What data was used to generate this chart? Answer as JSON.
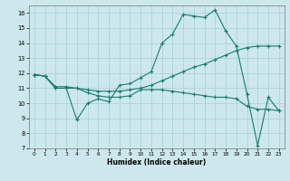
{
  "xlabel": "Humidex (Indice chaleur)",
  "xlim": [
    -0.5,
    23.5
  ],
  "ylim": [
    7,
    16.5
  ],
  "xticks": [
    0,
    1,
    2,
    3,
    4,
    5,
    6,
    7,
    8,
    9,
    10,
    11,
    12,
    13,
    14,
    15,
    16,
    17,
    18,
    19,
    20,
    21,
    22,
    23
  ],
  "yticks": [
    7,
    8,
    9,
    10,
    11,
    12,
    13,
    14,
    15,
    16
  ],
  "background_color": "#cce8ed",
  "grid_color": "#aacdd4",
  "line_color": "#1a7a6e",
  "line1_y": [
    11.9,
    11.8,
    11.0,
    11.0,
    8.9,
    10.0,
    10.3,
    10.1,
    11.2,
    11.3,
    11.7,
    12.1,
    14.0,
    14.6,
    15.9,
    15.8,
    15.7,
    16.2,
    14.8,
    13.8,
    10.6,
    7.2,
    10.4,
    9.5
  ],
  "line2_y": [
    11.9,
    11.8,
    11.1,
    11.1,
    11.0,
    10.9,
    10.8,
    10.8,
    10.8,
    10.9,
    11.0,
    11.2,
    11.5,
    11.8,
    12.1,
    12.4,
    12.6,
    12.9,
    13.2,
    13.5,
    13.7,
    13.8,
    13.8,
    13.8
  ],
  "line3_y": [
    11.9,
    11.8,
    11.0,
    11.0,
    11.0,
    10.7,
    10.5,
    10.4,
    10.4,
    10.5,
    10.9,
    10.9,
    10.9,
    10.8,
    10.7,
    10.6,
    10.5,
    10.4,
    10.4,
    10.3,
    9.8,
    9.6,
    9.6,
    9.5
  ]
}
